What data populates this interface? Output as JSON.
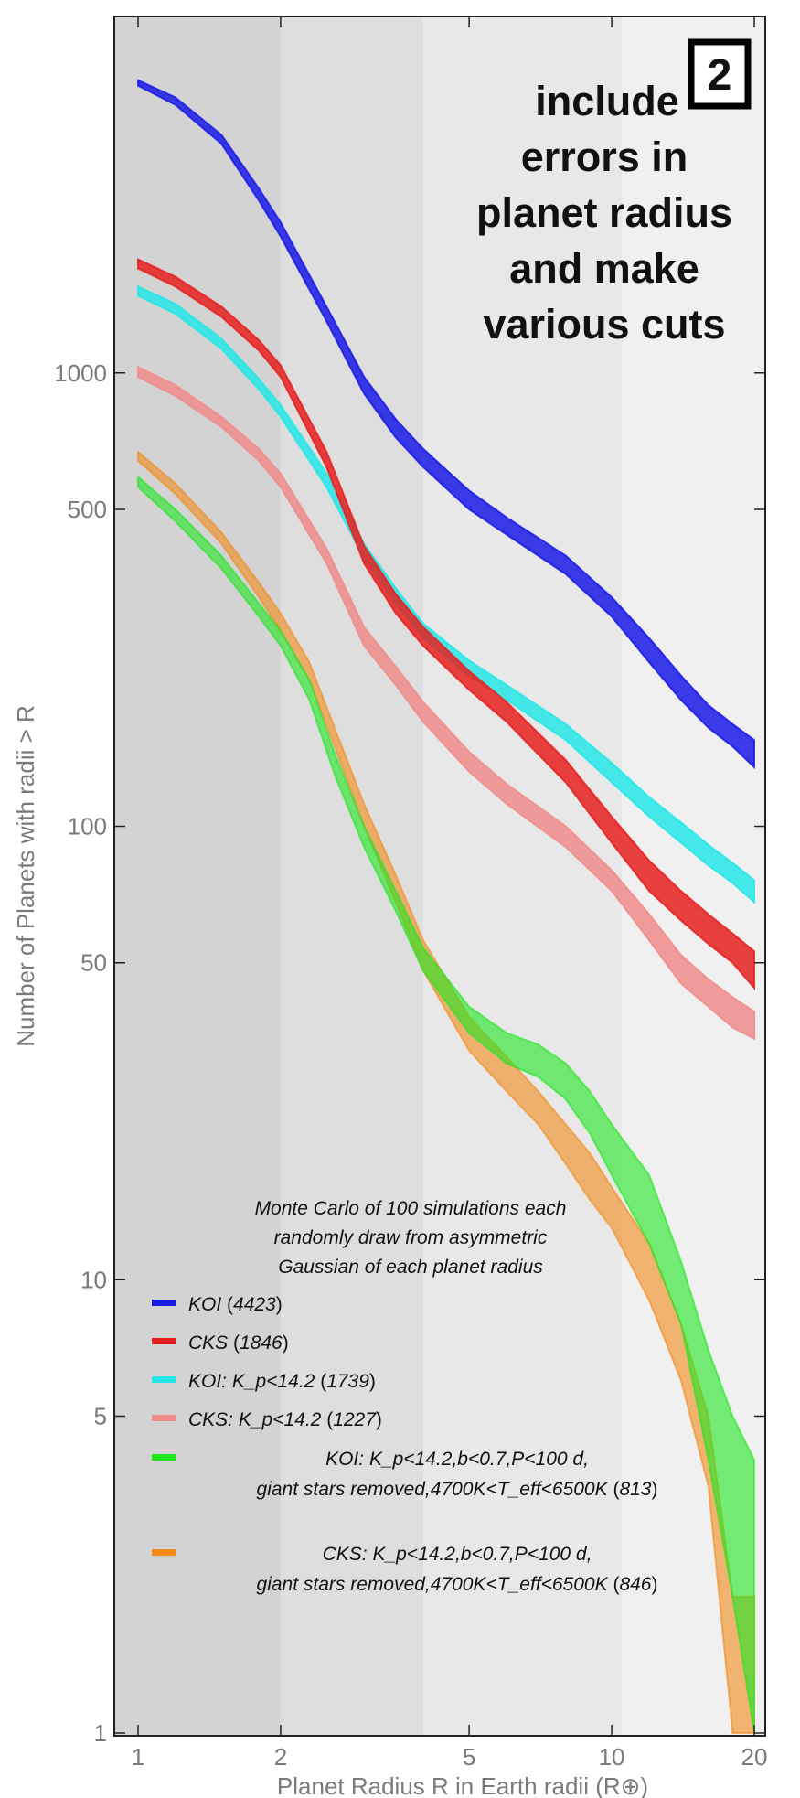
{
  "chart_data": {
    "type": "area",
    "xlabel": "Planet Radius R in Earth radii (R⊕)",
    "ylabel": "Number of Planets with radii > R",
    "x_scale": "log",
    "y_scale": "log",
    "xlim": [
      1,
      20
    ],
    "ylim": [
      1,
      6000
    ],
    "xticks": [
      1,
      2,
      5,
      10,
      20
    ],
    "yticks": [
      1,
      5,
      10,
      50,
      100,
      500,
      1000
    ],
    "shaded_bands": [
      {
        "from": 1,
        "to": 2,
        "color": "#d3d3d3"
      },
      {
        "from": 2,
        "to": 4,
        "color": "#dedede"
      },
      {
        "from": 4,
        "to": 10.5,
        "color": "#e8e8e8"
      },
      {
        "from": 10.5,
        "to": 20,
        "color": "#f0f0f0"
      }
    ],
    "annotation": "include errors in planet radius and make various cuts",
    "panel_number": "2",
    "note": [
      "Monte Carlo of 100 simulations each",
      "randomly draw from asymmetric",
      "Gaussian of each planet radius"
    ],
    "series": [
      {
        "name": "KOI",
        "count": "4423",
        "color": "#1a1ae6",
        "x": [
          1,
          1.2,
          1.5,
          1.8,
          2,
          2.5,
          3,
          3.5,
          4,
          5,
          6,
          8,
          10,
          12,
          14,
          16,
          18,
          20
        ],
        "lo": [
          4300,
          3900,
          3200,
          2400,
          2000,
          1300,
          900,
          720,
          620,
          500,
          440,
          360,
          290,
          230,
          190,
          165,
          150,
          135
        ],
        "hi": [
          4420,
          4050,
          3350,
          2550,
          2150,
          1400,
          980,
          790,
          680,
          550,
          480,
          395,
          320,
          260,
          215,
          185,
          168,
          155
        ]
      },
      {
        "name": "CKS",
        "count": "1846",
        "color": "#e62020",
        "x": [
          1,
          1.2,
          1.5,
          1.8,
          2,
          2.5,
          3,
          3.5,
          4,
          5,
          6,
          8,
          10,
          12,
          14,
          16,
          18,
          20
        ],
        "lo": [
          1700,
          1550,
          1330,
          1120,
          980,
          620,
          380,
          295,
          250,
          200,
          170,
          125,
          92,
          72,
          62,
          55,
          50,
          44
        ],
        "hi": [
          1780,
          1630,
          1400,
          1180,
          1040,
          670,
          415,
          325,
          275,
          220,
          188,
          140,
          105,
          84,
          72,
          64,
          58,
          53
        ]
      },
      {
        "name": "KOI: K_p<14.2",
        "count": "1739",
        "color": "#26e6e6",
        "x": [
          1,
          1.2,
          1.5,
          1.8,
          2,
          2.5,
          3,
          3.5,
          4,
          5,
          6,
          8,
          10,
          12,
          14,
          16,
          18,
          20
        ],
        "lo": [
          1480,
          1350,
          1130,
          920,
          800,
          560,
          390,
          310,
          260,
          215,
          190,
          155,
          125,
          105,
          92,
          82,
          75,
          68
        ],
        "hi": [
          1550,
          1420,
          1190,
          970,
          850,
          600,
          420,
          335,
          280,
          232,
          205,
          168,
          138,
          116,
          102,
          91,
          83,
          76
        ]
      },
      {
        "name": "CKS: K_p<14.2",
        "count": "1227",
        "color": "#f08c8c",
        "x": [
          1,
          1.2,
          1.5,
          1.8,
          2,
          2.5,
          3,
          3.5,
          4,
          5,
          6,
          8,
          10,
          12,
          14,
          16,
          18,
          20
        ],
        "lo": [
          980,
          890,
          760,
          640,
          560,
          380,
          250,
          205,
          170,
          132,
          112,
          90,
          72,
          56,
          45,
          40,
          36,
          34
        ],
        "hi": [
          1030,
          940,
          800,
          680,
          600,
          410,
          275,
          225,
          188,
          146,
          124,
          100,
          80,
          64,
          52,
          46,
          42,
          39
        ]
      },
      {
        "name": "KOI: K_p<14.2,b<0.7,P<100 d,",
        "name2": "giant stars removed,4700K<T_eff<6500K",
        "count": "813",
        "color": "#20e620",
        "x": [
          1,
          1.2,
          1.5,
          1.8,
          2,
          2.3,
          2.6,
          3,
          3.5,
          4,
          5,
          6,
          7,
          8,
          9,
          10,
          12,
          14,
          16,
          18,
          20
        ],
        "lo": [
          560,
          470,
          370,
          290,
          250,
          190,
          130,
          90,
          65,
          48,
          35,
          30,
          28,
          25,
          21,
          17,
          12,
          8,
          4,
          2,
          1
        ],
        "hi": [
          590,
          500,
          395,
          310,
          270,
          210,
          145,
          100,
          72,
          54,
          40,
          35,
          33,
          30,
          26,
          22,
          17,
          11,
          7,
          5,
          4
        ]
      },
      {
        "name": "CKS: K_p<14.2,b<0.7,P<100 d,",
        "name2": "giant stars removed,4700K<T_eff<6500K",
        "count": "846",
        "color": "#f28a1a",
        "x": [
          1,
          1.2,
          1.5,
          1.8,
          2,
          2.3,
          2.6,
          3,
          3.5,
          4,
          5,
          6,
          7,
          8,
          9,
          10,
          12,
          14,
          16,
          18,
          20
        ],
        "lo": [
          640,
          540,
          420,
          320,
          270,
          210,
          150,
          100,
          68,
          48,
          32,
          26,
          22,
          18,
          15,
          13,
          9,
          6,
          3.5,
          1,
          1
        ],
        "hi": [
          670,
          570,
          445,
          345,
          295,
          230,
          165,
          112,
          78,
          56,
          38,
          31,
          26,
          22,
          19,
          16,
          12,
          8,
          5,
          2,
          2
        ]
      }
    ]
  }
}
